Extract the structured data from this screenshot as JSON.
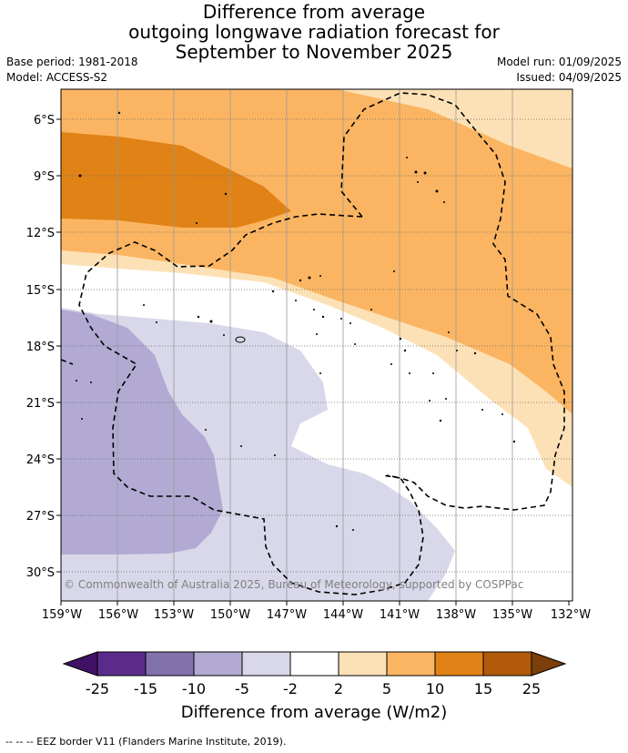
{
  "title": {
    "line1": "Difference from average",
    "line2": "outgoing longwave radiation forecast for",
    "line3": "September to November 2025"
  },
  "meta": {
    "base_period": "Base period: 1981-2018",
    "model": "Model: ACCESS-S2",
    "model_run": "Model run: 01/09/2025",
    "issued": "Issued: 04/09/2025"
  },
  "map": {
    "lat_labels": [
      "6°S",
      "9°S",
      "12°S",
      "15°S",
      "18°S",
      "21°S",
      "24°S",
      "27°S",
      "30°S"
    ],
    "lon_labels": [
      "159°W",
      "156°W",
      "153°W",
      "150°W",
      "147°W",
      "144°W",
      "141°W",
      "138°W",
      "135°W",
      "132°W"
    ],
    "copyright": "© Commonwealth of Australia 2025, Bureau of Meteorology, supported by COSPPac"
  },
  "colorbar": {
    "ticks": [
      "-25",
      "-15",
      "-10",
      "-5",
      "-2",
      "2",
      "5",
      "10",
      "15",
      "25"
    ],
    "colors": [
      "#3f1265",
      "#5b2b8c",
      "#8172ae",
      "#b2aad3",
      "#d8d8ea",
      "#ffffff",
      "#fde1b6",
      "#fbb562",
      "#e08216",
      "#b05a0a",
      "#7a3f0a"
    ],
    "label": "Difference from average (W/m2)"
  },
  "footer": "--  --  -- EEZ border V11 (Flanders Marine Institute, 2019)."
}
